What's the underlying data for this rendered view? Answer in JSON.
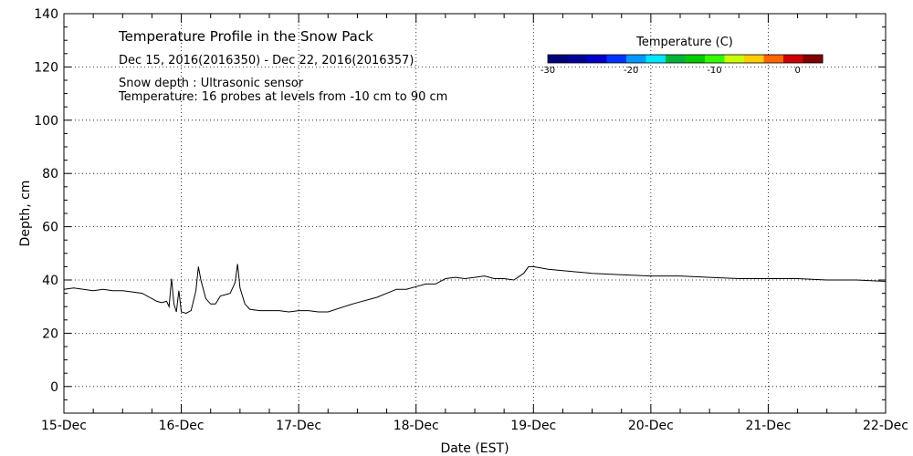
{
  "chart_data": {
    "type": "line",
    "title": "Temperature Profile in the Snow Pack",
    "subtitle": "Dec 15, 2016(2016350) - Dec 22, 2016(2016357)",
    "notes": [
      "Snow depth : Ultrasonic sensor",
      "Temperature: 16 probes at levels from -10 cm to 90 cm"
    ],
    "xlabel": "Date (EST)",
    "ylabel": "Depth, cm",
    "xlim": [
      "2016-12-15",
      "2016-12-22"
    ],
    "ylim": [
      -10,
      140
    ],
    "x_ticks": [
      "15-Dec",
      "16-Dec",
      "17-Dec",
      "18-Dec",
      "19-Dec",
      "20-Dec",
      "21-Dec",
      "22-Dec"
    ],
    "y_ticks": [
      0,
      20,
      40,
      60,
      80,
      100,
      120,
      140
    ],
    "grid": true,
    "colorbar": {
      "title": "Temperature (C)",
      "ticks": [
        -30,
        -20,
        -10,
        0
      ],
      "range": [
        -30,
        3
      ],
      "colors": [
        "#00007a",
        "#000099",
        "#0000c8",
        "#0033ff",
        "#0099ff",
        "#00e5ff",
        "#00b33c",
        "#00cc00",
        "#33ff00",
        "#ccff00",
        "#ffcc00",
        "#ff6600",
        "#cc0000",
        "#800000"
      ]
    },
    "series": [
      {
        "color": "#000000",
        "points": [
          [
            "2016-12-15 00:00",
            36.5
          ],
          [
            "2016-12-15 02:00",
            37
          ],
          [
            "2016-12-15 04:00",
            36.5
          ],
          [
            "2016-12-15 06:00",
            36
          ],
          [
            "2016-12-15 08:00",
            36.5
          ],
          [
            "2016-12-15 10:00",
            36
          ],
          [
            "2016-12-15 12:00",
            36
          ],
          [
            "2016-12-15 14:00",
            35.5
          ],
          [
            "2016-12-15 16:00",
            35
          ],
          [
            "2016-12-15 18:00",
            33
          ],
          [
            "2016-12-15 19:00",
            32
          ],
          [
            "2016-12-15 20:00",
            31.5
          ],
          [
            "2016-12-15 21:00",
            32
          ],
          [
            "2016-12-15 21:30",
            30
          ],
          [
            "2016-12-15 22:00",
            40.5
          ],
          [
            "2016-12-15 22:30",
            31
          ],
          [
            "2016-12-15 23:00",
            28
          ],
          [
            "2016-12-15 23:30",
            36
          ],
          [
            "2016-12-16 00:00",
            28
          ],
          [
            "2016-12-16 01:00",
            27.5
          ],
          [
            "2016-12-16 02:00",
            28.5
          ],
          [
            "2016-12-16 03:00",
            36
          ],
          [
            "2016-12-16 03:30",
            45
          ],
          [
            "2016-12-16 04:00",
            40
          ],
          [
            "2016-12-16 05:00",
            33
          ],
          [
            "2016-12-16 06:00",
            31
          ],
          [
            "2016-12-16 07:00",
            31
          ],
          [
            "2016-12-16 08:00",
            34
          ],
          [
            "2016-12-16 09:00",
            34.5
          ],
          [
            "2016-12-16 10:00",
            35
          ],
          [
            "2016-12-16 11:00",
            39
          ],
          [
            "2016-12-16 11:30",
            46
          ],
          [
            "2016-12-16 12:00",
            37
          ],
          [
            "2016-12-16 13:00",
            31
          ],
          [
            "2016-12-16 14:00",
            29
          ],
          [
            "2016-12-16 16:00",
            28.5
          ],
          [
            "2016-12-16 18:00",
            28.5
          ],
          [
            "2016-12-16 20:00",
            28.5
          ],
          [
            "2016-12-16 22:00",
            28
          ],
          [
            "2016-12-17 00:00",
            28.5
          ],
          [
            "2016-12-17 02:00",
            28.5
          ],
          [
            "2016-12-17 04:00",
            28
          ],
          [
            "2016-12-17 06:00",
            28
          ],
          [
            "2016-12-17 11:00",
            31
          ],
          [
            "2016-12-17 16:00",
            33.5
          ],
          [
            "2016-12-17 18:00",
            35
          ],
          [
            "2016-12-17 20:00",
            36.5
          ],
          [
            "2016-12-17 22:00",
            36.5
          ],
          [
            "2016-12-18 00:00",
            37.5
          ],
          [
            "2016-12-18 02:00",
            38.5
          ],
          [
            "2016-12-18 04:00",
            38.5
          ],
          [
            "2016-12-18 06:00",
            40.5
          ],
          [
            "2016-12-18 08:00",
            41
          ],
          [
            "2016-12-18 10:00",
            40.5
          ],
          [
            "2016-12-18 12:00",
            41
          ],
          [
            "2016-12-18 14:00",
            41.5
          ],
          [
            "2016-12-18 16:00",
            40.5
          ],
          [
            "2016-12-18 18:00",
            40.5
          ],
          [
            "2016-12-18 20:00",
            40
          ],
          [
            "2016-12-18 22:00",
            42.5
          ],
          [
            "2016-12-18 23:00",
            45
          ],
          [
            "2016-12-19 00:00",
            45
          ],
          [
            "2016-12-19 03:00",
            44
          ],
          [
            "2016-12-19 06:00",
            43.5
          ],
          [
            "2016-12-19 09:00",
            43
          ],
          [
            "2016-12-19 12:00",
            42.5
          ],
          [
            "2016-12-19 18:00",
            42
          ],
          [
            "2016-12-20 00:00",
            41.5
          ],
          [
            "2016-12-20 06:00",
            41.5
          ],
          [
            "2016-12-20 12:00",
            41
          ],
          [
            "2016-12-20 18:00",
            40.5
          ],
          [
            "2016-12-21 00:00",
            40.5
          ],
          [
            "2016-12-21 06:00",
            40.5
          ],
          [
            "2016-12-21 12:00",
            40
          ],
          [
            "2016-12-21 18:00",
            40
          ],
          [
            "2016-12-22 00:00",
            39.5
          ]
        ]
      }
    ]
  }
}
